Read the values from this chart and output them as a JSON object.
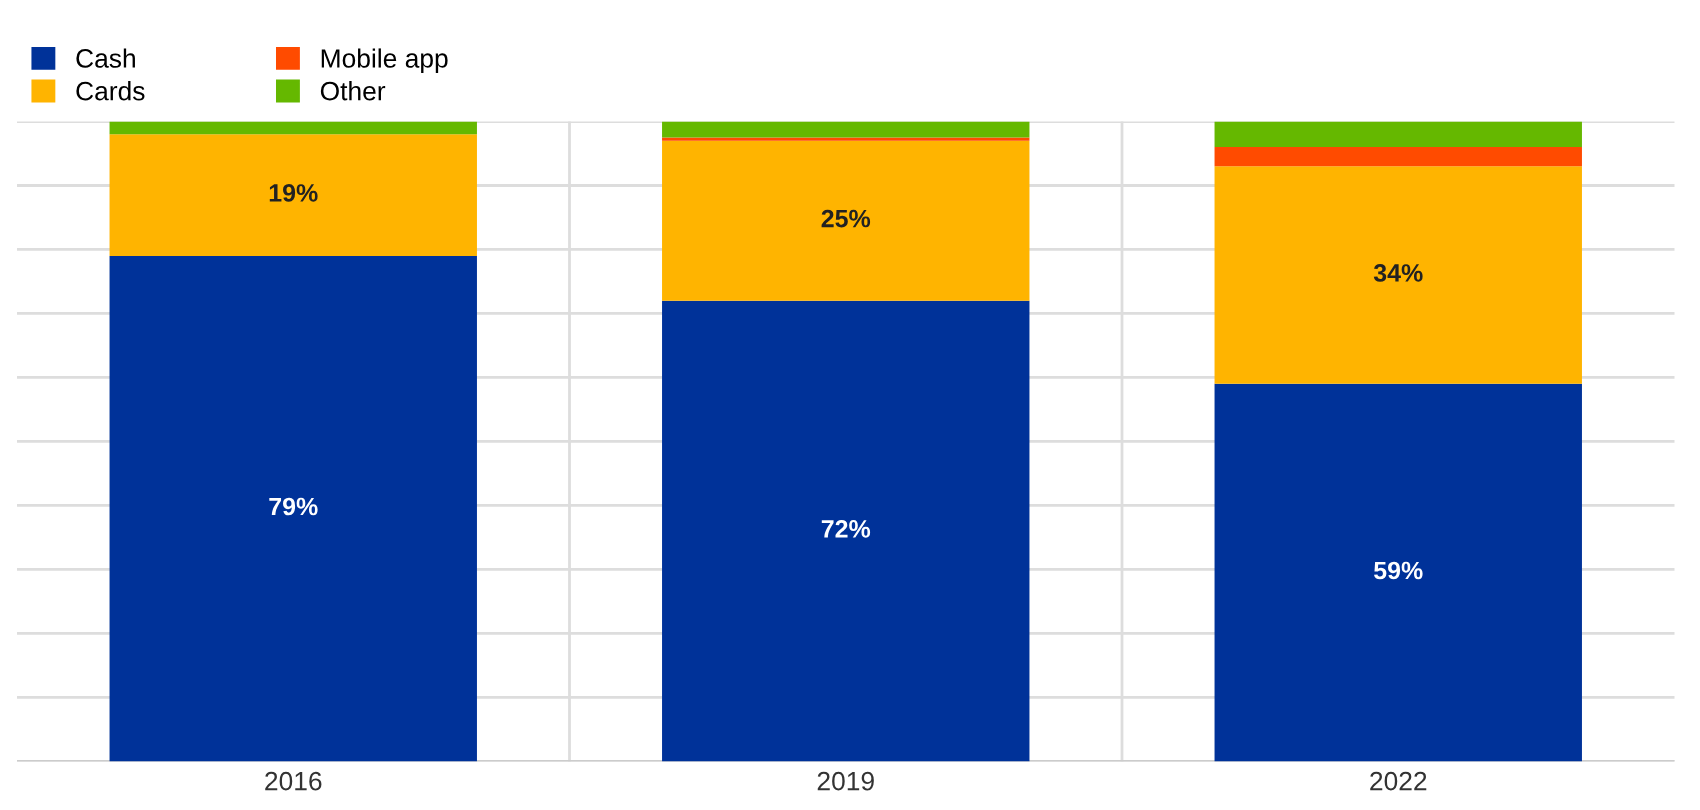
{
  "chart_data": {
    "type": "bar",
    "stacked": true,
    "categories": [
      "2016",
      "2019",
      "2022"
    ],
    "series": [
      {
        "name": "Cash",
        "color": "#003299",
        "values": [
          79,
          72,
          59
        ],
        "value_labels": [
          "79%",
          "72%",
          "59%"
        ]
      },
      {
        "name": "Cards",
        "color": "#ffb400",
        "values": [
          19,
          25,
          34
        ],
        "value_labels": [
          "19%",
          "25%",
          "34%"
        ]
      },
      {
        "name": "Mobile app",
        "color": "#ff4b00",
        "values": [
          0,
          0.5,
          3
        ],
        "value_labels": [
          null,
          null,
          null
        ]
      },
      {
        "name": "Other",
        "color": "#65b800",
        "values": [
          2,
          2.5,
          4
        ],
        "value_labels": [
          null,
          null,
          null
        ]
      }
    ],
    "ylim": [
      0,
      100
    ],
    "yticks": [
      {
        "value": 0,
        "label": null
      },
      {
        "value": 10,
        "label": null
      },
      {
        "value": 20,
        "label": null
      },
      {
        "value": 30,
        "label": null
      },
      {
        "value": 40,
        "label": null
      },
      {
        "value": 50,
        "label": null
      },
      {
        "value": 60,
        "label": null
      },
      {
        "value": 70,
        "label": null
      },
      {
        "value": 80,
        "label": null
      },
      {
        "value": 90,
        "label": null
      },
      {
        "value": 100,
        "label": null
      }
    ],
    "tick_labels": "x",
    "grid": true,
    "legend": "top left"
  }
}
